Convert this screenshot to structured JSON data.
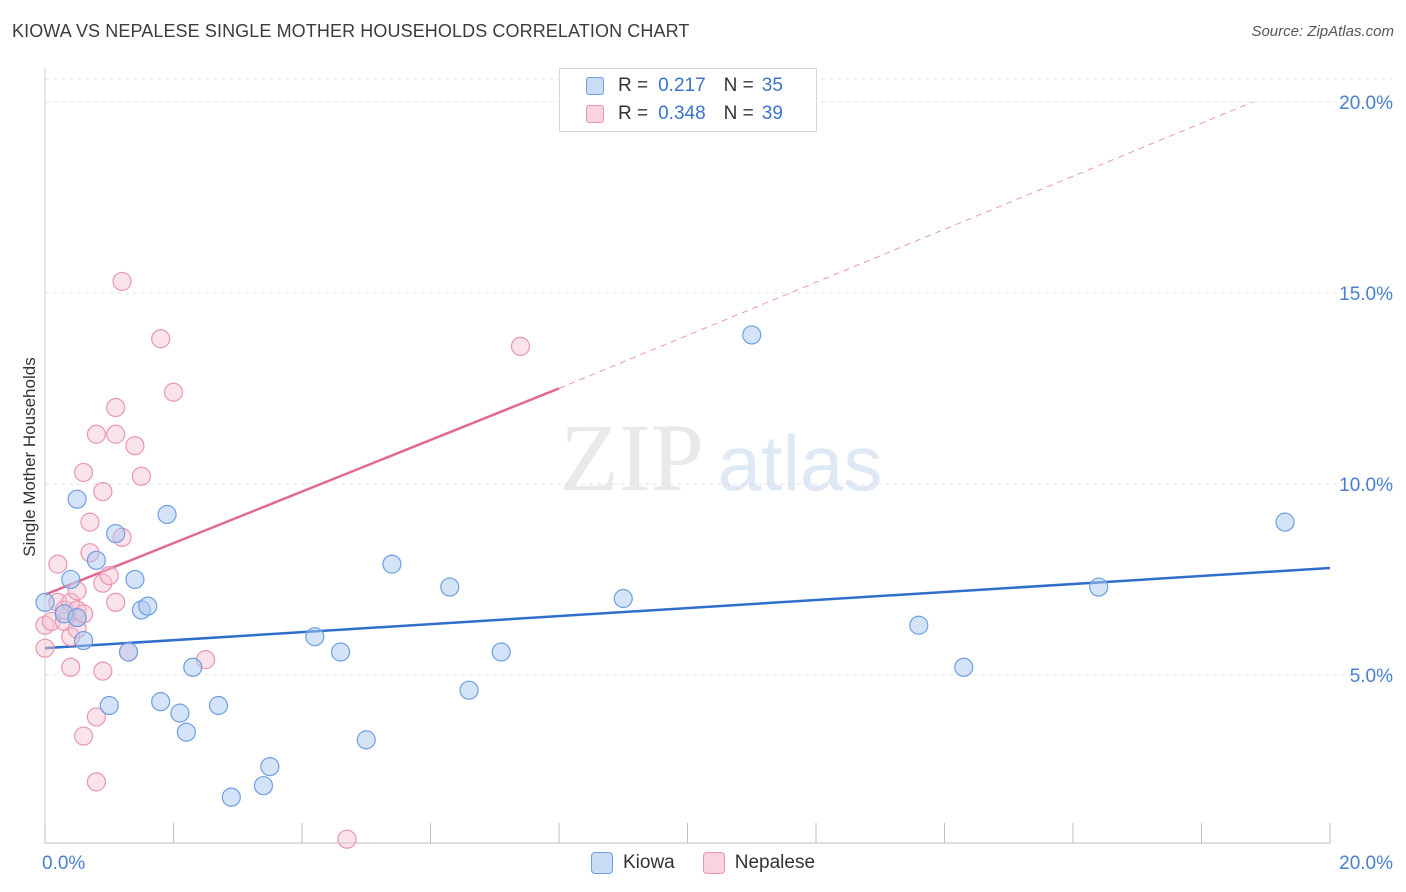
{
  "header": {
    "title": "KIOWA VS NEPALESE SINGLE MOTHER HOUSEHOLDS CORRELATION CHART",
    "source": "Source: ZipAtlas.com"
  },
  "watermark": {
    "zip": "ZIP",
    "atlas": "atlas"
  },
  "legend": {
    "r_label": "R =",
    "n_label": "N =",
    "kiowa": {
      "r": "0.217",
      "n": "35"
    },
    "nepalese": {
      "r": "0.348",
      "n": "39"
    }
  },
  "colors": {
    "kiowa_fill": "#aac8f0",
    "kiowa_stroke": "#6d9fe0",
    "kiowa_line": "#2f6fcc",
    "nepalese_fill": "#f7c2d3",
    "nepalese_stroke": "#e995b1",
    "nepalese_line": "#e06a93",
    "tick_text": "#4a7fd0",
    "grid": "#e3e3e3"
  },
  "chart_data": {
    "type": "scatter",
    "title": "KIOWA VS NEPALESE SINGLE MOTHER HOUSEHOLDS CORRELATION CHART",
    "xlabel": "",
    "ylabel": "Single Mother Households",
    "xlim": [
      0,
      20
    ],
    "ylim": [
      0.6,
      20.6
    ],
    "x_tick_labels": [
      "0.0%",
      "20.0%"
    ],
    "y_ticks": [
      5,
      10,
      15,
      20
    ],
    "y_tick_labels": [
      "5.0%",
      "10.0%",
      "15.0%",
      "20.0%"
    ],
    "grid": true,
    "legend_position": "top-center",
    "series": [
      {
        "name": "Kiowa",
        "r": 0.217,
        "n": 35,
        "trend": {
          "x0": 0,
          "y0": 5.7,
          "x1": 20,
          "y1": 7.8
        },
        "points": [
          [
            0.0,
            6.9
          ],
          [
            0.3,
            6.6
          ],
          [
            0.4,
            7.5
          ],
          [
            0.5,
            6.5
          ],
          [
            0.5,
            9.6
          ],
          [
            0.6,
            5.9
          ],
          [
            0.8,
            8.0
          ],
          [
            1.0,
            4.2
          ],
          [
            1.1,
            8.7
          ],
          [
            1.3,
            5.6
          ],
          [
            1.4,
            7.5
          ],
          [
            1.5,
            6.7
          ],
          [
            1.6,
            6.8
          ],
          [
            1.8,
            4.3
          ],
          [
            1.9,
            9.2
          ],
          [
            2.1,
            4.0
          ],
          [
            2.2,
            3.5
          ],
          [
            2.3,
            5.2
          ],
          [
            2.7,
            4.2
          ],
          [
            2.9,
            1.8
          ],
          [
            3.4,
            2.1
          ],
          [
            3.5,
            2.6
          ],
          [
            4.2,
            6.0
          ],
          [
            4.6,
            5.6
          ],
          [
            5.0,
            3.3
          ],
          [
            5.4,
            7.9
          ],
          [
            6.3,
            7.3
          ],
          [
            6.6,
            4.6
          ],
          [
            7.1,
            5.6
          ],
          [
            9.0,
            7.0
          ],
          [
            11.0,
            13.9
          ],
          [
            13.6,
            6.3
          ],
          [
            14.3,
            5.2
          ],
          [
            16.4,
            7.3
          ],
          [
            19.3,
            9.0
          ]
        ]
      },
      {
        "name": "Nepalese",
        "r": 0.348,
        "n": 39,
        "trend": {
          "x0": 0,
          "y0": 7.1,
          "x1": 8.0,
          "y1": 12.5,
          "dash_x1": 18.8,
          "dash_y1": 20.0
        },
        "points": [
          [
            0.0,
            6.3
          ],
          [
            0.0,
            5.7
          ],
          [
            0.1,
            6.4
          ],
          [
            0.2,
            7.9
          ],
          [
            0.2,
            6.9
          ],
          [
            0.3,
            6.4
          ],
          [
            0.3,
            6.7
          ],
          [
            0.4,
            6.0
          ],
          [
            0.4,
            5.2
          ],
          [
            0.4,
            6.9
          ],
          [
            0.5,
            6.5
          ],
          [
            0.5,
            6.2
          ],
          [
            0.5,
            7.2
          ],
          [
            0.5,
            6.7
          ],
          [
            0.6,
            6.6
          ],
          [
            0.6,
            3.4
          ],
          [
            0.6,
            10.3
          ],
          [
            0.7,
            9.0
          ],
          [
            0.7,
            8.2
          ],
          [
            0.8,
            11.3
          ],
          [
            0.8,
            3.9
          ],
          [
            0.8,
            2.2
          ],
          [
            0.9,
            9.8
          ],
          [
            0.9,
            7.4
          ],
          [
            0.9,
            5.1
          ],
          [
            1.0,
            7.6
          ],
          [
            1.1,
            6.9
          ],
          [
            1.1,
            12.0
          ],
          [
            1.1,
            11.3
          ],
          [
            1.2,
            8.6
          ],
          [
            1.2,
            15.3
          ],
          [
            1.3,
            5.6
          ],
          [
            1.4,
            11.0
          ],
          [
            1.5,
            10.2
          ],
          [
            1.8,
            13.8
          ],
          [
            2.0,
            12.4
          ],
          [
            2.5,
            5.4
          ],
          [
            4.7,
            0.7
          ],
          [
            7.4,
            13.6
          ]
        ]
      }
    ]
  },
  "bottom_legend": {
    "kiowa": "Kiowa",
    "nepalese": "Nepalese"
  }
}
